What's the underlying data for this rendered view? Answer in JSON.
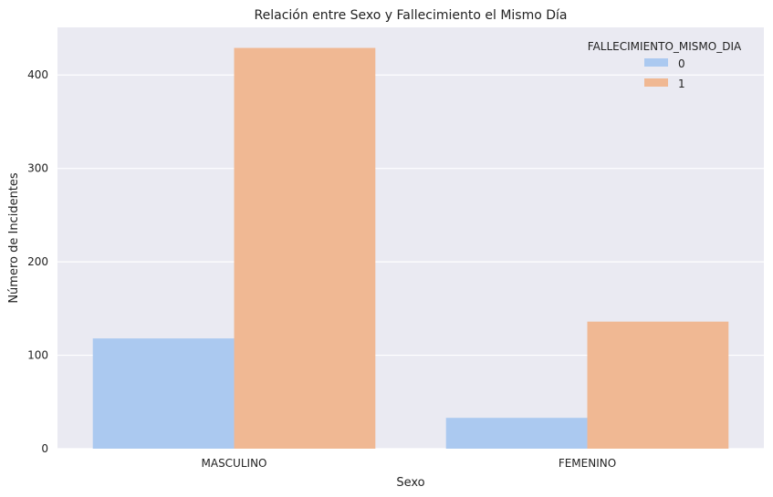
{
  "chart_data": {
    "type": "bar",
    "title": "Relación entre Sexo y Fallecimiento el Mismo Día",
    "xlabel": "Sexo",
    "ylabel": "Número de Incidentes",
    "categories": [
      "MASCULINO",
      "FEMENINO"
    ],
    "series": [
      {
        "name": "0",
        "values": [
          118,
          33
        ],
        "color": "#abc9f0"
      },
      {
        "name": "1",
        "values": [
          429,
          136
        ],
        "color": "#f0b893"
      }
    ],
    "ylim": [
      0,
      451
    ],
    "yticks": [
      0,
      100,
      200,
      300,
      400
    ],
    "grid": true,
    "legend": {
      "title": "FALLECIMIENTO_MISMO_DIA",
      "position": "top-right"
    },
    "background_color": "#eaeaf2"
  }
}
